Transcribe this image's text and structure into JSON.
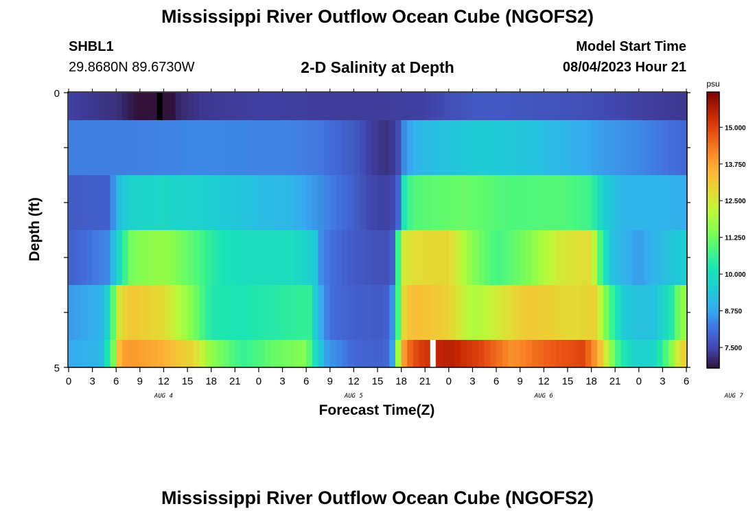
{
  "header": {
    "title": "Mississippi River Outflow Ocean Cube (NGOFS2)",
    "station_id": "SHBL1",
    "station_coords": "29.8680N  89.6730W",
    "plot_title": "2-D Salinity at Depth",
    "model_start_label": "Model Start Time",
    "model_start_value": "08/04/2023 Hour 21",
    "footer_title": "Mississippi River Outflow Ocean Cube (NGOFS2)"
  },
  "chart_data": {
    "type": "heatmap",
    "title": "2-D Salinity at Depth",
    "xlabel": "Forecast Time(Z)",
    "ylabel": "Depth (ft)",
    "y_ticks": [
      "0",
      "5"
    ],
    "ylim": [
      0,
      5
    ],
    "x_tick_labels": [
      "0",
      "3",
      "6",
      "9",
      "12",
      "15",
      "18",
      "21",
      "0",
      "3",
      "6",
      "9",
      "12",
      "15",
      "18",
      "21",
      "0",
      "3",
      "6",
      "9",
      "12",
      "15",
      "18",
      "21",
      "0",
      "3",
      "6"
    ],
    "day_labels": [
      {
        "label": "AUG 4",
        "hour": 12
      },
      {
        "label": "AUG 5",
        "hour": 36
      },
      {
        "label": "AUG 6",
        "hour": 60
      },
      {
        "label": "AUG 7",
        "hour": 84
      }
    ],
    "x_hours_range": [
      0,
      78
    ],
    "colorbar": {
      "unit": "psu",
      "range": [
        6.8,
        16.2
      ],
      "tick_values": [
        15.0,
        13.75,
        12.5,
        11.25,
        10.0,
        8.75,
        7.5
      ],
      "tick_labels": [
        "15.000",
        "13.750",
        "12.500",
        "11.250",
        "10.000",
        "8.750",
        "7.500"
      ]
    },
    "layers": [
      {
        "name": "layer-1",
        "keys": [
          [
            0,
            7.4
          ],
          [
            6,
            7.2
          ],
          [
            8,
            6.9
          ],
          [
            10.5,
            6.4
          ],
          [
            11.5,
            5.5
          ],
          [
            12.5,
            6.6
          ],
          [
            14,
            7.1
          ],
          [
            17,
            7.3
          ],
          [
            24,
            7.4
          ],
          [
            36,
            7.35
          ],
          [
            45,
            7.4
          ],
          [
            48,
            7.6
          ],
          [
            52,
            7.8
          ],
          [
            60,
            7.7
          ],
          [
            66,
            7.6
          ],
          [
            72,
            7.4
          ],
          [
            78,
            7.3
          ]
        ]
      },
      {
        "name": "layer-2",
        "keys": [
          [
            0,
            8.3
          ],
          [
            8,
            8.3
          ],
          [
            16,
            8.4
          ],
          [
            28,
            8.35
          ],
          [
            32,
            8.2
          ],
          [
            36,
            7.8
          ],
          [
            38,
            7.4
          ],
          [
            40,
            7.2
          ],
          [
            41.5,
            7.4
          ],
          [
            42.5,
            8.6
          ],
          [
            44,
            9.0
          ],
          [
            48,
            9.3
          ],
          [
            52,
            9.5
          ],
          [
            56,
            9.4
          ],
          [
            60,
            9.2
          ],
          [
            64,
            8.9
          ],
          [
            68,
            8.6
          ],
          [
            72,
            8.4
          ],
          [
            78,
            8.0
          ]
        ]
      },
      {
        "name": "layer-3",
        "keys": [
          [
            0,
            7.8
          ],
          [
            5,
            7.9
          ],
          [
            6.5,
            9.3
          ],
          [
            8,
            9.7
          ],
          [
            12,
            9.8
          ],
          [
            18,
            9.6
          ],
          [
            22,
            9.3
          ],
          [
            28,
            9.0
          ],
          [
            33,
            8.3
          ],
          [
            36,
            7.9
          ],
          [
            38,
            7.5
          ],
          [
            40,
            7.4
          ],
          [
            41.5,
            7.6
          ],
          [
            42.5,
            10.6
          ],
          [
            44,
            11.0
          ],
          [
            50,
            11.2
          ],
          [
            56,
            10.9
          ],
          [
            62,
            11.0
          ],
          [
            66,
            10.7
          ],
          [
            67.5,
            9.6
          ],
          [
            70,
            9.0
          ],
          [
            75,
            9.0
          ],
          [
            78,
            8.8
          ]
        ]
      },
      {
        "name": "layer-4",
        "keys": [
          [
            0,
            7.9
          ],
          [
            5,
            8.4
          ],
          [
            6,
            9.5
          ],
          [
            7,
            10.6
          ],
          [
            8,
            11.4
          ],
          [
            12,
            11.7
          ],
          [
            16,
            11.0
          ],
          [
            19,
            10.2
          ],
          [
            22,
            10.0
          ],
          [
            28,
            10.0
          ],
          [
            31,
            9.6
          ],
          [
            32,
            8.3
          ],
          [
            36,
            7.8
          ],
          [
            40,
            7.6
          ],
          [
            41,
            7.9
          ],
          [
            42,
            12.4
          ],
          [
            44,
            12.8
          ],
          [
            48,
            12.9
          ],
          [
            51,
            11.5
          ],
          [
            54,
            10.8
          ],
          [
            58,
            11.4
          ],
          [
            62,
            12.5
          ],
          [
            66,
            12.8
          ],
          [
            67,
            11.0
          ],
          [
            68.5,
            9.3
          ],
          [
            72,
            8.6
          ],
          [
            74,
            9.0
          ],
          [
            76,
            9.3
          ],
          [
            78,
            9.6
          ]
        ]
      },
      {
        "name": "layer-5",
        "keys": [
          [
            0,
            8.6
          ],
          [
            4,
            8.9
          ],
          [
            5,
            9.8
          ],
          [
            6.5,
            12.8
          ],
          [
            8,
            13.2
          ],
          [
            12,
            12.8
          ],
          [
            16,
            11.3
          ],
          [
            18,
            10.3
          ],
          [
            22,
            10.2
          ],
          [
            28,
            10.5
          ],
          [
            30.5,
            10.6
          ],
          [
            31.5,
            9.0
          ],
          [
            33,
            8.1
          ],
          [
            36,
            7.9
          ],
          [
            40,
            7.8
          ],
          [
            41,
            8.6
          ],
          [
            41.5,
            10.5
          ],
          [
            42.5,
            13.2
          ],
          [
            44,
            13.4
          ],
          [
            48,
            13.0
          ],
          [
            51,
            11.9
          ],
          [
            54,
            12.4
          ],
          [
            58,
            13.2
          ],
          [
            64,
            12.8
          ],
          [
            66.5,
            13.0
          ],
          [
            68,
            11.2
          ],
          [
            70,
            9.5
          ],
          [
            72,
            9.2
          ],
          [
            74,
            9.3
          ],
          [
            76,
            10.2
          ],
          [
            77,
            11.3
          ],
          [
            78,
            11.8
          ]
        ]
      },
      {
        "name": "layer-6",
        "keys": [
          [
            0,
            8.8
          ],
          [
            4,
            9.0
          ],
          [
            5.5,
            11.0
          ],
          [
            6.5,
            13.8
          ],
          [
            8,
            13.9
          ],
          [
            12,
            13.6
          ],
          [
            16,
            12.8
          ],
          [
            18,
            11.6
          ],
          [
            22,
            10.6
          ],
          [
            26,
            11.2
          ],
          [
            30,
            11.5
          ],
          [
            31,
            10.2
          ],
          [
            32.5,
            8.7
          ],
          [
            36,
            8.0
          ],
          [
            40,
            7.9
          ],
          [
            41,
            8.8
          ],
          [
            41.5,
            11.5
          ],
          [
            42.5,
            14.2
          ],
          [
            44,
            15.0
          ],
          [
            46,
            15.4
          ],
          [
            48,
            15.6
          ],
          [
            52,
            15.0
          ],
          [
            56,
            14.0
          ],
          [
            60,
            14.6
          ],
          [
            65,
            15.0
          ],
          [
            67,
            13.5
          ],
          [
            69,
            11.0
          ],
          [
            70.5,
            10.0
          ],
          [
            72,
            9.6
          ],
          [
            74,
            9.8
          ],
          [
            76,
            11.4
          ],
          [
            77,
            12.6
          ],
          [
            78,
            13.2
          ]
        ]
      }
    ],
    "gap_markers": [
      {
        "layer": "layer-1",
        "hour": 11.5
      },
      {
        "layer": "layer-6",
        "hour": 46.0
      }
    ]
  }
}
